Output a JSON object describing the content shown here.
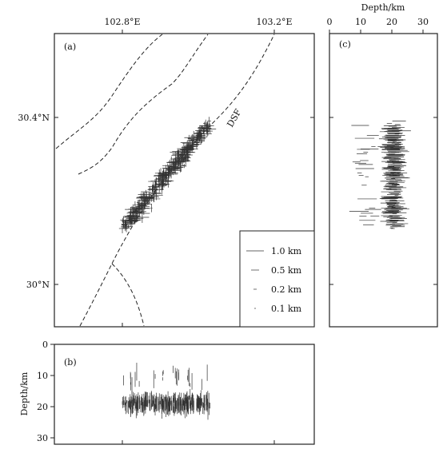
{
  "panels": {
    "a": {
      "label": "(a)"
    },
    "b": {
      "label": "(b)"
    },
    "c": {
      "label": "(c)"
    }
  },
  "axes": {
    "lon_ticks": [
      "102.8°E",
      "103.2°E"
    ],
    "lat_ticks": [
      "30.4°N",
      "30°N"
    ],
    "depth_label": "Depth/km",
    "depth_ticks_b": [
      "0",
      "10",
      "20",
      "30"
    ],
    "depth_ticks_c": [
      "0",
      "10",
      "20",
      "30"
    ]
  },
  "fault_label": "DSF",
  "legend": {
    "items": [
      {
        "label": "1.0 km",
        "length_km": 1.0
      },
      {
        "label": "0.5 km",
        "length_km": 0.5
      },
      {
        "label": "0.2 km",
        "length_km": 0.2
      },
      {
        "label": "0.1 km",
        "length_km": 0.1
      }
    ]
  },
  "chart_data": {
    "type": "scatter",
    "map_extent": {
      "lon": [
        102.62,
        103.25
      ],
      "lat": [
        29.9,
        30.6
      ]
    },
    "depth_range": [
      0,
      32
    ],
    "cluster": {
      "lon_range": [
        102.78,
        103.0
      ],
      "lat_range": [
        30.13,
        30.4
      ],
      "depth_range": [
        5,
        27
      ],
      "depth_mode": 19
    }
  }
}
